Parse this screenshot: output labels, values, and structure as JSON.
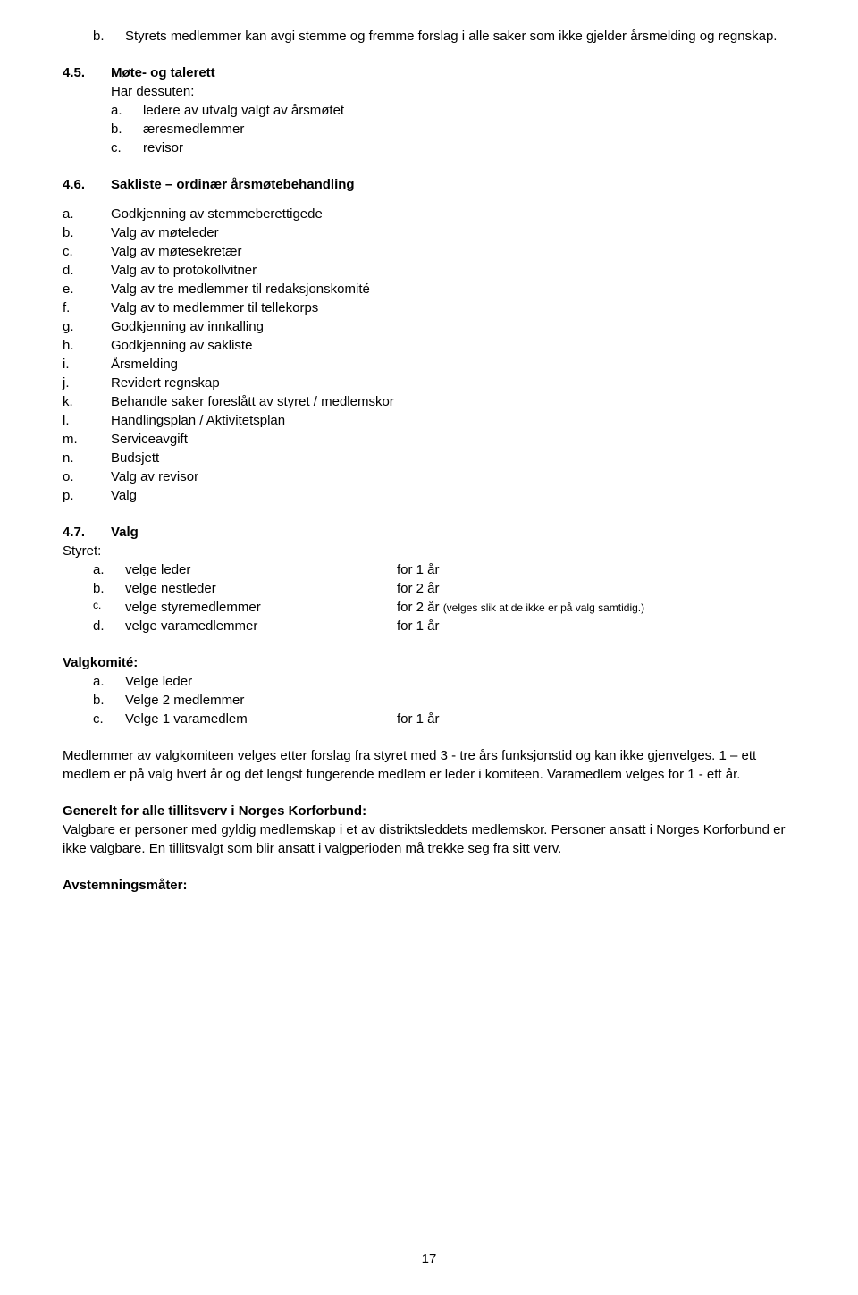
{
  "sec_b_marker": "b.",
  "sec_b_text": "Styrets medlemmer kan avgi stemme og fremme forslag i alle saker som ikke gjelder årsmelding og regnskap.",
  "sec45_num": "4.5.",
  "sec45_title": "Møte- og talerett",
  "sec45_intro": "Har dessuten:",
  "sec45_items": [
    {
      "m": "a.",
      "t": "ledere av utvalg valgt av årsmøtet"
    },
    {
      "m": "b.",
      "t": "æresmedlemmer"
    },
    {
      "m": "c.",
      "t": "revisor"
    }
  ],
  "sec46_num": "4.6.",
  "sec46_title": "Sakliste – ordinær årsmøtebehandling",
  "sec46_items": [
    {
      "m": "a.",
      "t": "Godkjenning av stemmeberettigede"
    },
    {
      "m": "b.",
      "t": "Valg av møteleder"
    },
    {
      "m": "c.",
      "t": "Valg av møtesekretær"
    },
    {
      "m": "d.",
      "t": "Valg av to protokollvitner"
    },
    {
      "m": "e.",
      "t": "Valg av tre medlemmer til redaksjonskomité"
    },
    {
      "m": "f.",
      "t": "Valg av to medlemmer til tellekorps"
    },
    {
      "m": "g.",
      "t": "Godkjenning av innkalling"
    },
    {
      "m": "h.",
      "t": "Godkjenning av sakliste"
    },
    {
      "m": "i.",
      "t": "Årsmelding"
    },
    {
      "m": "j.",
      "t": "Revidert regnskap"
    },
    {
      "m": "k.",
      "t": "Behandle saker foreslått av styret / medlemskor"
    },
    {
      "m": "l.",
      "t": "Handlingsplan / Aktivitetsplan"
    },
    {
      "m": "m.",
      "t": "Serviceavgift"
    },
    {
      "m": "n.",
      "t": "Budsjett"
    },
    {
      "m": "o.",
      "t": "Valg av revisor"
    },
    {
      "m": "p.",
      "t": "Valg"
    }
  ],
  "sec47_num": "4.7.",
  "sec47_title": "Valg",
  "sec47_intro": "Styret:",
  "sec47_items": [
    {
      "m": "a.",
      "t": "velge leder",
      "r": "for 1 år",
      "note": ""
    },
    {
      "m": "b.",
      "t": "velge nestleder",
      "r": "for 2 år",
      "note": ""
    },
    {
      "m": "c.",
      "t": "velge styremedlemmer",
      "r": "for 2 år ",
      "note": "(velges slik at de ikke er på valg samtidig.)"
    },
    {
      "m": "d.",
      "t": "velge varamedlemmer",
      "r": "for 1 år",
      "note": ""
    }
  ],
  "valgkomite_title": "Valgkomité:",
  "valgkomite_items": [
    {
      "m": "a.",
      "t": "Velge leder",
      "r": ""
    },
    {
      "m": "b.",
      "t": "Velge 2 medlemmer",
      "r": ""
    },
    {
      "m": "c.",
      "t": "Velge 1 varamedlem",
      "r": "for 1 år"
    }
  ],
  "para1": "Medlemmer av valgkomiteen velges etter forslag fra styret med 3 - tre års funksjonstid og kan ikke gjenvelges. 1 – ett medlem er på valg hvert år og det lengst fungerende medlem er leder i komiteen. Varamedlem velges for 1 - ett år.",
  "generelt_title": "Generelt for alle tillitsverv i Norges Korforbund:",
  "generelt_text": "Valgbare er personer med gyldig medlemskap i et av distriktsleddets medlemskor. Personer ansatt i Norges Korforbund er ikke valgbare. En tillitsvalgt som blir ansatt i valgperioden må trekke seg fra sitt verv.",
  "avstem_title": "Avstemningsmåter:",
  "page_number": "17"
}
